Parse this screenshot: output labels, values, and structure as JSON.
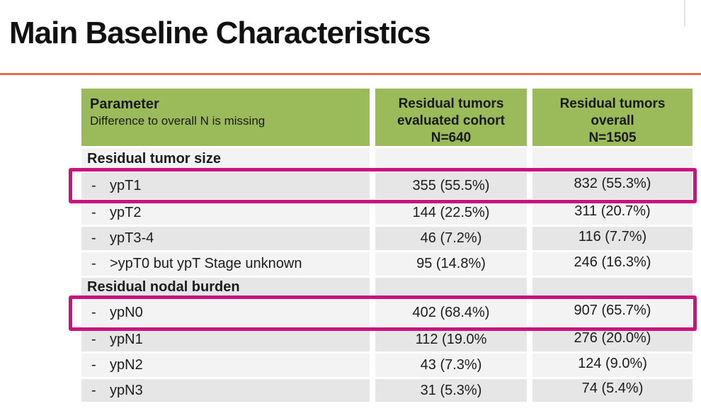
{
  "slide": {
    "title": "Main Baseline Characteristics",
    "accent_colors": {
      "divider_orange": "#e0714c",
      "header_green": "#9bba59",
      "highlight_magenta": "#c9137e"
    }
  },
  "table": {
    "header": {
      "col1_title": "Parameter",
      "col1_subtitle": "Difference to overall N is missing",
      "col2_lines": [
        "Residual tumors",
        "evaluated cohort",
        "N=640"
      ],
      "col3_lines": [
        "Residual tumors",
        "overall",
        "N=1505"
      ]
    },
    "rows": [
      {
        "type": "section",
        "label": "Residual tumor size",
        "evaluated": "",
        "overall": ""
      },
      {
        "type": "item",
        "bullet": "-",
        "label": "ypT1",
        "evaluated": "355 (55.5%)",
        "overall": "832 (55.3%)",
        "highlighted": true
      },
      {
        "type": "item",
        "bullet": "-",
        "label": "ypT2",
        "evaluated": "144 (22.5%)",
        "overall": "311 (20.7%)",
        "highlighted": false
      },
      {
        "type": "item",
        "bullet": "-",
        "label": "ypT3-4",
        "evaluated": "46 (7.2%)",
        "overall": "116 (7.7%)",
        "highlighted": false
      },
      {
        "type": "item",
        "bullet": "-",
        "label": ">ypT0 but ypT Stage unknown",
        "evaluated": "95 (14.8%)",
        "overall": "246 (16.3%)",
        "highlighted": false
      },
      {
        "type": "section",
        "label": "Residual nodal burden",
        "evaluated": "",
        "overall": ""
      },
      {
        "type": "item",
        "bullet": "-",
        "label": "ypN0",
        "evaluated": "402 (68.4%)",
        "overall": "907 (65.7%)",
        "highlighted": true
      },
      {
        "type": "item",
        "bullet": "-",
        "label": "ypN1",
        "evaluated": "112 (19.0%",
        "overall": "276 (20.0%)",
        "highlighted": false
      },
      {
        "type": "item",
        "bullet": "-",
        "label": "ypN2",
        "evaluated": "43 (7.3%)",
        "overall": "124 (9.0%)",
        "highlighted": false
      },
      {
        "type": "item",
        "bullet": "-",
        "label": "ypN3",
        "evaluated": "31 (5.3%)",
        "overall": "74 (5.4%)",
        "highlighted": false
      }
    ]
  }
}
